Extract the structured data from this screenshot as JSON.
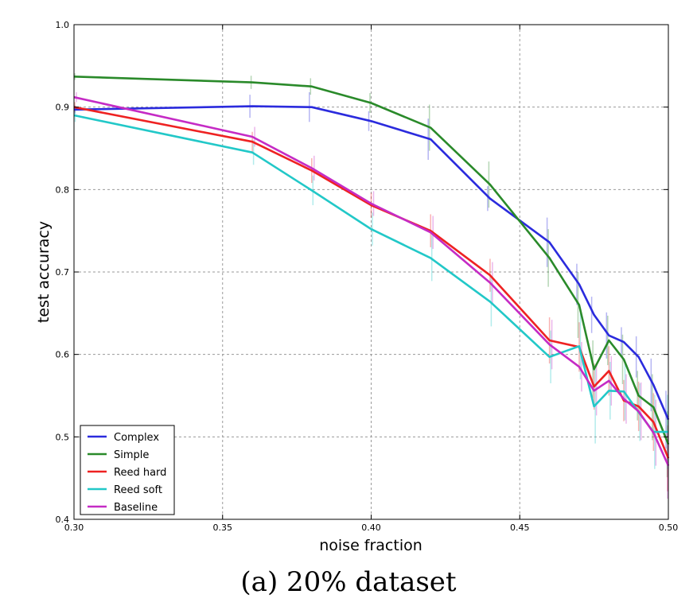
{
  "caption": "(a) 20% dataset",
  "chart_data": {
    "type": "line",
    "xlabel": "noise fraction",
    "ylabel": "test accuracy",
    "xlim": [
      0.3,
      0.5
    ],
    "ylim": [
      0.4,
      1.0
    ],
    "x_ticks": [
      "0.30",
      "0.35",
      "0.40",
      "0.45",
      "0.50"
    ],
    "y_ticks": [
      "0.4",
      "0.5",
      "0.6",
      "0.7",
      "0.8",
      "0.9",
      "1.0"
    ],
    "grid": true,
    "legend_position": "lower-left",
    "x": [
      0.3,
      0.36,
      0.38,
      0.4,
      0.42,
      0.44,
      0.46,
      0.47,
      0.475,
      0.48,
      0.485,
      0.49,
      0.495,
      0.5
    ],
    "series": [
      {
        "name": "Complex",
        "color": "#2b2bdd",
        "values": [
          0.897,
          0.901,
          0.9,
          0.883,
          0.861,
          0.789,
          0.736,
          0.685,
          0.648,
          0.623,
          0.615,
          0.597,
          0.563,
          0.521
        ],
        "errors": [
          0.005,
          0.014,
          0.018,
          0.012,
          0.025,
          0.015,
          0.03,
          0.025,
          0.022,
          0.028,
          0.018,
          0.025,
          0.032,
          0.035
        ]
      },
      {
        "name": "Simple",
        "color": "#2a8a2a",
        "values": [
          0.937,
          0.93,
          0.925,
          0.905,
          0.875,
          0.806,
          0.717,
          0.66,
          0.582,
          0.617,
          0.594,
          0.55,
          0.536,
          0.491
        ],
        "errors": [
          0.004,
          0.008,
          0.01,
          0.012,
          0.028,
          0.028,
          0.035,
          0.04,
          0.035,
          0.03,
          0.03,
          0.03,
          0.04,
          0.04
        ]
      },
      {
        "name": "Reed hard",
        "color": "#ee2222",
        "values": [
          0.9,
          0.858,
          0.823,
          0.781,
          0.75,
          0.696,
          0.617,
          0.609,
          0.561,
          0.58,
          0.544,
          0.537,
          0.518,
          0.474
        ],
        "errors": [
          0.006,
          0.012,
          0.015,
          0.015,
          0.02,
          0.02,
          0.028,
          0.03,
          0.028,
          0.03,
          0.025,
          0.03,
          0.035,
          0.04
        ]
      },
      {
        "name": "Reed soft",
        "color": "#22c8c8",
        "values": [
          0.89,
          0.845,
          0.799,
          0.752,
          0.717,
          0.664,
          0.597,
          0.61,
          0.537,
          0.556,
          0.555,
          0.53,
          0.506,
          0.506
        ],
        "errors": [
          0.008,
          0.015,
          0.018,
          0.02,
          0.028,
          0.03,
          0.032,
          0.04,
          0.045,
          0.035,
          0.035,
          0.035,
          0.045,
          0.045
        ]
      },
      {
        "name": "Baseline",
        "color": "#c52bc5",
        "values": [
          0.912,
          0.864,
          0.826,
          0.783,
          0.748,
          0.687,
          0.612,
          0.585,
          0.556,
          0.568,
          0.546,
          0.531,
          0.505,
          0.465
        ],
        "errors": [
          0.006,
          0.012,
          0.015,
          0.015,
          0.02,
          0.025,
          0.03,
          0.03,
          0.03,
          0.03,
          0.03,
          0.035,
          0.04,
          0.04
        ]
      }
    ]
  }
}
